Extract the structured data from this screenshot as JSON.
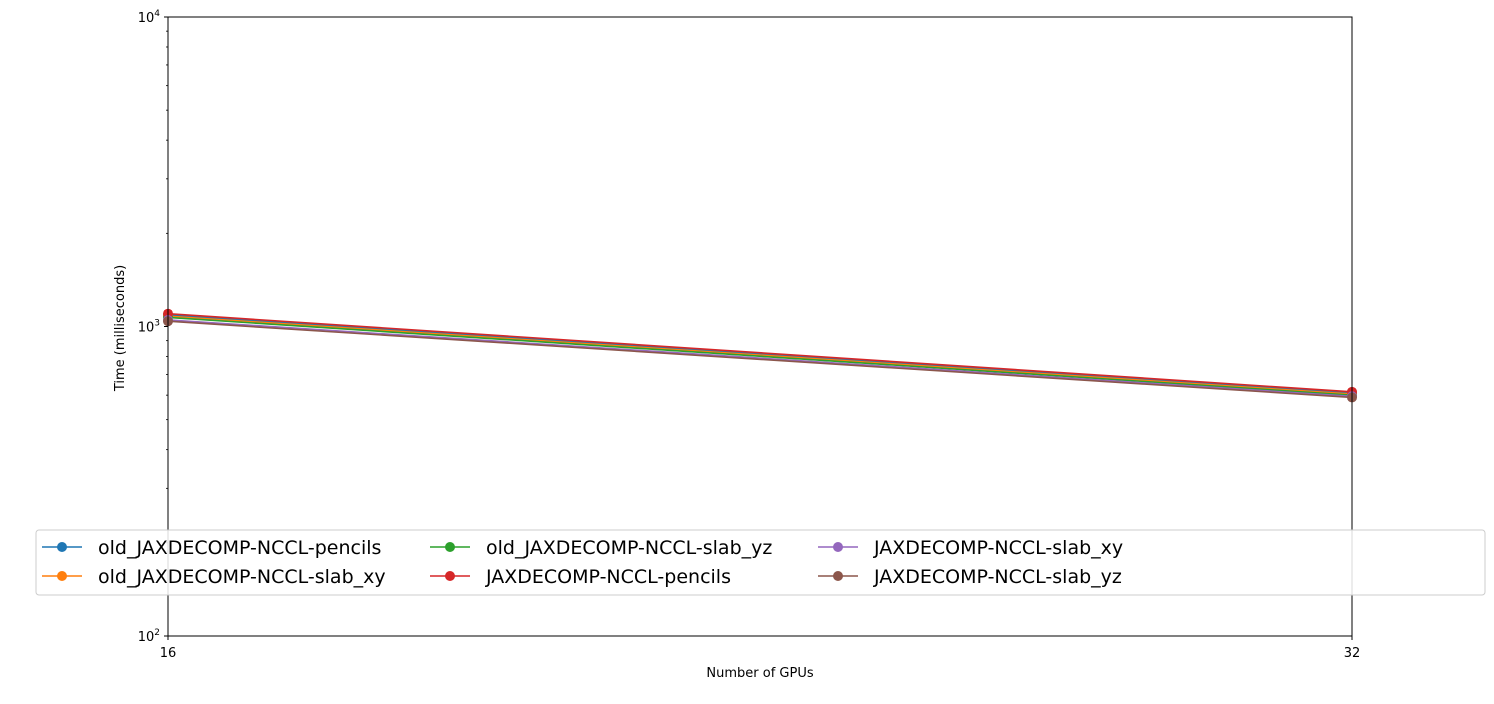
{
  "chart_data": {
    "type": "line",
    "xlabel": "Number of GPUs",
    "ylabel": "Time (milliseconds)",
    "x_scale": "log2",
    "y_scale": "log10",
    "xlim": [
      16,
      32
    ],
    "ylim": [
      100,
      10000
    ],
    "xticks": [
      {
        "value": 16,
        "label": "16"
      },
      {
        "value": 32,
        "label": "32"
      }
    ],
    "yticks": [
      {
        "value": 100,
        "base": "10",
        "exp": "2"
      },
      {
        "value": 1000,
        "base": "10",
        "exp": "3"
      },
      {
        "value": 10000,
        "base": "10",
        "exp": "4"
      }
    ],
    "grid": "vertical dashed at x ticks",
    "legend_placement": "lower-center, 4 columns",
    "x": [
      16,
      32
    ],
    "series": [
      {
        "name": "old_JAXDECOMP-NCCL-pencils",
        "color": "#1f77b4",
        "values": [
          1090,
          610
        ]
      },
      {
        "name": "old_JAXDECOMP-NCCL-slab_xy",
        "color": "#ff7f0e",
        "values": [
          1080,
          605
        ]
      },
      {
        "name": "old_JAXDECOMP-NCCL-slab_yz",
        "color": "#2ca02c",
        "values": [
          1070,
          600
        ]
      },
      {
        "name": "JAXDECOMP-NCCL-pencils",
        "color": "#d62728",
        "values": [
          1100,
          615
        ]
      },
      {
        "name": "JAXDECOMP-NCCL-slab_xy",
        "color": "#9467bd",
        "values": [
          1050,
          595
        ]
      },
      {
        "name": "JAXDECOMP-NCCL-slab_yz",
        "color": "#8c564b",
        "values": [
          1040,
          590
        ]
      }
    ]
  }
}
